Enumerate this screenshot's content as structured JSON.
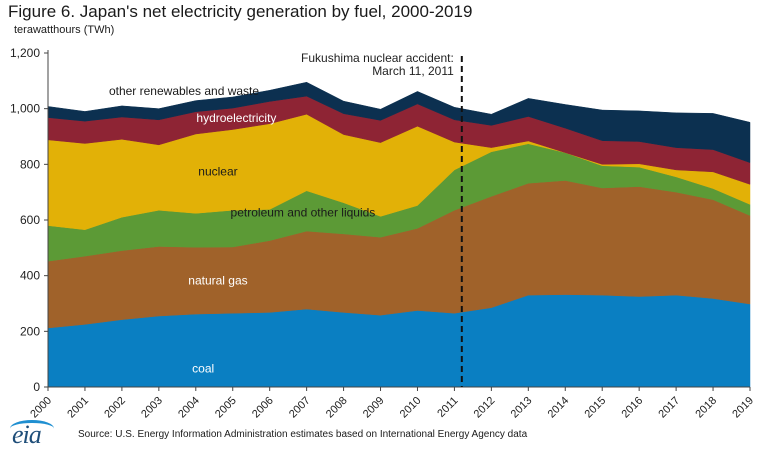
{
  "header": {
    "title": "Figure 6. Japan's net electricity generation by fuel, 2000-2019",
    "unit": "terawatthours (TWh)"
  },
  "footer": {
    "logo_text": "eia",
    "source": "Source: U.S. Energy Information Administration estimates based on International Energy Agency data"
  },
  "chart_data": {
    "type": "area",
    "stacked": true,
    "x": [
      "2000",
      "2001",
      "2002",
      "2003",
      "2004",
      "2005",
      "2006",
      "2007",
      "2008",
      "2009",
      "2010",
      "2011",
      "2012",
      "2013",
      "2014",
      "2015",
      "2016",
      "2017",
      "2018",
      "2019"
    ],
    "ylim": [
      0,
      1200
    ],
    "yticks": [
      "0",
      "200",
      "400",
      "600",
      "800",
      "1,000",
      "1,200"
    ],
    "grid": false,
    "series": [
      {
        "name": "coal",
        "color": "#0a7fc2",
        "values": [
          212,
          225,
          242,
          255,
          262,
          265,
          268,
          280,
          268,
          258,
          275,
          265,
          285,
          330,
          332,
          330,
          325,
          330,
          318,
          298
        ]
      },
      {
        "name": "natural gas",
        "color": "#a0622a",
        "values": [
          240,
          245,
          248,
          250,
          240,
          238,
          258,
          280,
          282,
          280,
          295,
          370,
          400,
          402,
          410,
          385,
          395,
          370,
          355,
          318
        ]
      },
      {
        "name": "petroleum and other liquids",
        "color": "#5c9a36",
        "values": [
          128,
          95,
          120,
          130,
          122,
          132,
          112,
          145,
          112,
          75,
          82,
          145,
          160,
          142,
          100,
          80,
          70,
          55,
          40,
          40
        ]
      },
      {
        "name": "nuclear",
        "color": "#e2b107",
        "values": [
          308,
          310,
          280,
          235,
          285,
          290,
          308,
          275,
          245,
          265,
          285,
          100,
          15,
          10,
          0,
          5,
          12,
          25,
          60,
          72
        ]
      },
      {
        "name": "hydroelectricity",
        "color": "#8e2434",
        "values": [
          80,
          80,
          80,
          90,
          80,
          77,
          80,
          65,
          75,
          80,
          80,
          80,
          80,
          88,
          88,
          85,
          80,
          80,
          80,
          78
        ]
      },
      {
        "name": "other renewables and waste",
        "color": "#0c3050",
        "values": [
          40,
          35,
          40,
          40,
          40,
          40,
          40,
          50,
          45,
          40,
          45,
          45,
          40,
          65,
          85,
          110,
          110,
          125,
          130,
          145
        ]
      }
    ],
    "annotations": [
      {
        "text_lines": [
          "Fukushima nuclear accident:",
          "March 11, 2011"
        ],
        "x": 2011.2,
        "style": "dashed-vertical-line"
      }
    ]
  }
}
